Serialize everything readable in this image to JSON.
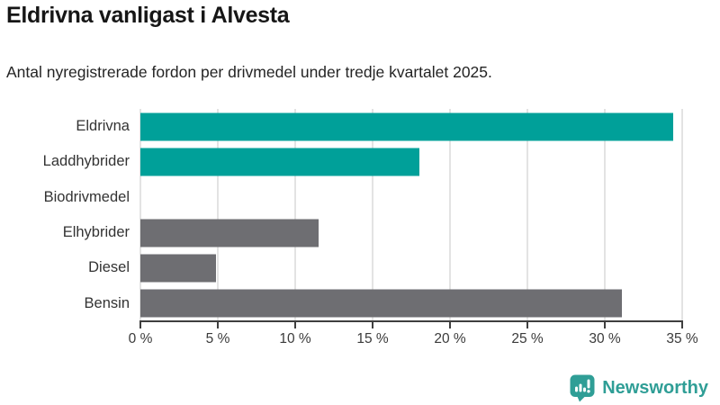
{
  "header": {
    "title": "Eldrivna vanligast i Alvesta",
    "subtitle": "Antal nyregistrerade fordon per drivmedel under tredje kvartalet 2025."
  },
  "chart_data": {
    "type": "bar",
    "orientation": "horizontal",
    "title": "Eldrivna vanligast i Alvesta",
    "subtitle": "Antal nyregistrerade fordon per drivmedel under tredje kvartalet 2025.",
    "categories": [
      "Eldrivna",
      "Laddhybrider",
      "Biodrivmedel",
      "Elhybrider",
      "Diesel",
      "Bensin"
    ],
    "values": [
      34.4,
      18.0,
      0,
      11.5,
      4.9,
      31.1
    ],
    "unit": "%",
    "xlabel": "",
    "ylabel": "",
    "xlim": [
      0,
      35
    ],
    "xticks": [
      0,
      5,
      10,
      15,
      20,
      25,
      30,
      35
    ],
    "xtick_labels": [
      "0 %",
      "5 %",
      "10 %",
      "15 %",
      "20 %",
      "25 %",
      "30 %",
      "35 %"
    ],
    "bar_colors": [
      "#00a099",
      "#00a099",
      "#6e6e72",
      "#6e6e72",
      "#6e6e72",
      "#6e6e72"
    ],
    "grid": "vertical-gridlines-on",
    "legend": "none",
    "colors": {
      "highlight": "#00a099",
      "default": "#6e6e72",
      "gridline": "#e3e3e3",
      "axis": "#3f3f3f"
    }
  },
  "footer": {
    "brand": "Newsworthy",
    "brand_color": "#2f9e96",
    "logo_icon": "newsworthy-speech-bubble-bar-chart-icon"
  }
}
